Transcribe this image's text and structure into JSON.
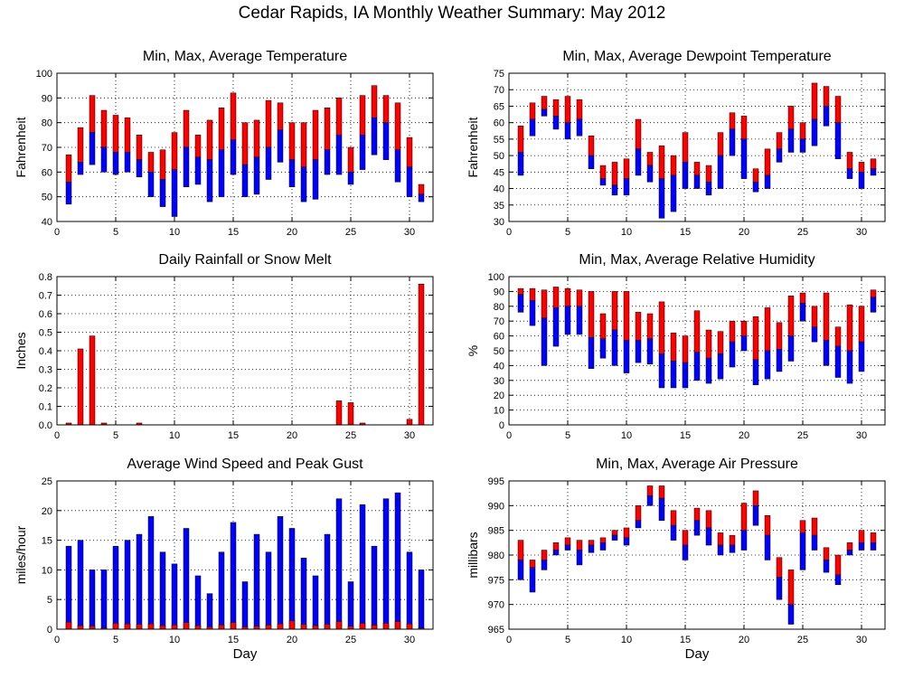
{
  "title": "Cedar Rapids, IA Monthly Weather Summary: May 2012",
  "colors": {
    "red": "#ff0000",
    "blue": "#0000ff",
    "grid": "#000000"
  },
  "chart_data": [
    {
      "id": "temp",
      "type": "bar",
      "title": "Min, Max, Average Temperature",
      "ylabel": "Fahrenheit",
      "xlabel": "",
      "xlim": [
        0,
        32
      ],
      "xticks": [
        0,
        5,
        10,
        15,
        20,
        25,
        30
      ],
      "ylim": [
        40,
        100
      ],
      "yticks": [
        40,
        50,
        60,
        70,
        80,
        90,
        100
      ],
      "grid": true,
      "x": [
        1,
        2,
        3,
        4,
        5,
        6,
        7,
        8,
        9,
        10,
        11,
        12,
        13,
        14,
        15,
        16,
        17,
        18,
        19,
        20,
        21,
        22,
        23,
        24,
        25,
        26,
        27,
        28,
        29,
        30,
        31
      ],
      "min": [
        47,
        59,
        63,
        60,
        59,
        60,
        58,
        50,
        46,
        42,
        54,
        55,
        48,
        50,
        59,
        50,
        51,
        57,
        64,
        54,
        48,
        49,
        59,
        59,
        55,
        61,
        67,
        65,
        56,
        50,
        48
      ],
      "avg": [
        56,
        64,
        76,
        70,
        68,
        68,
        65,
        60,
        57,
        61,
        70,
        66,
        65,
        69,
        73,
        63,
        66,
        70,
        77,
        65,
        62,
        65,
        69,
        75,
        60,
        75,
        82,
        80,
        69,
        62,
        51
      ],
      "max": [
        67,
        78,
        91,
        85,
        83,
        82,
        75,
        68,
        69,
        76,
        85,
        75,
        81,
        86,
        92,
        80,
        81,
        89,
        88,
        80,
        80,
        85,
        86,
        90,
        70,
        91,
        95,
        91,
        88,
        74,
        55
      ]
    },
    {
      "id": "dewpoint",
      "type": "bar",
      "title": "Min, Max, Average Dewpoint Temperature",
      "ylabel": "Fahrenheit",
      "xlabel": "",
      "xlim": [
        0,
        32
      ],
      "xticks": [
        0,
        5,
        10,
        15,
        20,
        25,
        30
      ],
      "ylim": [
        30,
        75
      ],
      "yticks": [
        30,
        35,
        40,
        45,
        50,
        55,
        60,
        65,
        70,
        75
      ],
      "grid": true,
      "x": [
        1,
        2,
        3,
        4,
        5,
        6,
        7,
        8,
        9,
        10,
        11,
        12,
        13,
        14,
        15,
        16,
        17,
        18,
        19,
        20,
        21,
        22,
        23,
        24,
        25,
        26,
        27,
        28,
        29,
        30,
        31
      ],
      "min": [
        44,
        56,
        62,
        58,
        55,
        56,
        46,
        41,
        38,
        38,
        44,
        42,
        31,
        33,
        40,
        40,
        38,
        40,
        50,
        43,
        39,
        40,
        48,
        51,
        51,
        53,
        59,
        49,
        43,
        40,
        44
      ],
      "avg": [
        51,
        61,
        64,
        62,
        60,
        61,
        50,
        43,
        41,
        43,
        52,
        47,
        43,
        44,
        48,
        44,
        42,
        50,
        58,
        55,
        42,
        44,
        52,
        58,
        55,
        61,
        65,
        60,
        46,
        45,
        46
      ],
      "max": [
        59,
        66,
        68,
        67,
        68,
        67,
        56,
        47,
        48,
        49,
        61,
        51,
        53,
        50,
        57,
        48,
        47,
        57,
        63,
        62,
        46,
        52,
        57,
        65,
        60,
        72,
        71,
        68,
        51,
        48,
        49
      ]
    },
    {
      "id": "rain",
      "type": "bar",
      "title": "Daily Rainfall or Snow Melt",
      "ylabel": "Inches",
      "xlabel": "",
      "xlim": [
        0,
        32
      ],
      "xticks": [
        0,
        5,
        10,
        15,
        20,
        25,
        30
      ],
      "ylim": [
        0,
        0.8
      ],
      "yticks": [
        "0.0",
        "0.1",
        "0.2",
        "0.3",
        "0.4",
        "0.5",
        "0.6",
        "0.7",
        "0.8"
      ],
      "grid": true,
      "x": [
        1,
        2,
        3,
        4,
        5,
        6,
        7,
        8,
        9,
        10,
        11,
        12,
        13,
        14,
        15,
        16,
        17,
        18,
        19,
        20,
        21,
        22,
        23,
        24,
        25,
        26,
        27,
        28,
        29,
        30,
        31
      ],
      "values": [
        0.01,
        0.41,
        0.48,
        0.01,
        0,
        0,
        0.01,
        0,
        0,
        0,
        0,
        0,
        0,
        0,
        0,
        0,
        0,
        0,
        0,
        0,
        0,
        0,
        0,
        0.13,
        0.12,
        0.01,
        0,
        0,
        0,
        0.03,
        0.76
      ]
    },
    {
      "id": "humidity",
      "type": "bar",
      "title": "Min, Max, Average Relative Humidity",
      "ylabel": "%",
      "xlabel": "",
      "xlim": [
        0,
        32
      ],
      "xticks": [
        0,
        5,
        10,
        15,
        20,
        25,
        30
      ],
      "ylim": [
        0,
        100
      ],
      "yticks": [
        0,
        10,
        20,
        30,
        40,
        50,
        60,
        70,
        80,
        90,
        100
      ],
      "grid": true,
      "x": [
        1,
        2,
        3,
        4,
        5,
        6,
        7,
        8,
        9,
        10,
        11,
        12,
        13,
        14,
        15,
        16,
        17,
        18,
        19,
        20,
        21,
        22,
        23,
        24,
        25,
        26,
        27,
        28,
        29,
        30,
        31
      ],
      "min": [
        76,
        67,
        40,
        53,
        61,
        61,
        38,
        45,
        40,
        35,
        42,
        41,
        25,
        25,
        25,
        30,
        28,
        31,
        39,
        50,
        27,
        31,
        36,
        43,
        70,
        56,
        40,
        32,
        28,
        36,
        76
      ],
      "avg": [
        88,
        84,
        72,
        79,
        80,
        80,
        59,
        58,
        64,
        57,
        57,
        58,
        48,
        43,
        42,
        49,
        45,
        48,
        56,
        60,
        44,
        50,
        51,
        60,
        82,
        66,
        57,
        53,
        50,
        56,
        86
      ],
      "max": [
        92,
        92,
        91,
        93,
        92,
        91,
        90,
        75,
        90,
        90,
        76,
        75,
        83,
        62,
        60,
        77,
        64,
        63,
        70,
        70,
        73,
        79,
        69,
        87,
        89,
        80,
        89,
        66,
        81,
        80,
        91
      ]
    },
    {
      "id": "wind",
      "type": "bar",
      "title": "Average Wind Speed and Peak Gust",
      "ylabel": "miles/hour",
      "xlabel": "Day",
      "xlim": [
        0,
        32
      ],
      "xticks": [
        0,
        5,
        10,
        15,
        20,
        25,
        30
      ],
      "ylim": [
        0,
        25
      ],
      "yticks": [
        0,
        5,
        10,
        15,
        20,
        25
      ],
      "grid": true,
      "x": [
        1,
        2,
        3,
        4,
        5,
        6,
        7,
        8,
        9,
        10,
        11,
        12,
        13,
        14,
        15,
        16,
        17,
        18,
        19,
        20,
        21,
        22,
        23,
        24,
        25,
        26,
        27,
        28,
        29,
        30,
        31
      ],
      "gust": [
        14,
        15,
        10,
        10,
        14,
        15,
        16,
        19,
        13,
        11,
        17,
        9,
        6,
        13,
        18,
        8,
        16,
        13,
        19,
        17,
        12,
        9,
        16,
        22,
        8,
        21,
        14,
        22,
        23,
        13,
        10
      ],
      "avg": [
        1.2,
        0.6,
        0.5,
        0.2,
        1.0,
        0.9,
        0.8,
        0.9,
        0.6,
        0.7,
        1.1,
        0.6,
        0.4,
        0.7,
        1.1,
        0.4,
        0.5,
        0.7,
        0.9,
        1.4,
        0.8,
        0.6,
        0.8,
        1.3,
        0.5,
        1.0,
        0.7,
        1.0,
        1.3,
        0.9,
        0.2
      ]
    },
    {
      "id": "pressure",
      "type": "bar",
      "title": "Min, Max, Average Air Pressure",
      "ylabel": "millibars",
      "xlabel": "Day",
      "xlim": [
        0,
        32
      ],
      "xticks": [
        0,
        5,
        10,
        15,
        20,
        25,
        30
      ],
      "ylim": [
        965,
        995
      ],
      "yticks": [
        965,
        970,
        975,
        980,
        985,
        990,
        995
      ],
      "grid": true,
      "x": [
        1,
        2,
        3,
        4,
        5,
        6,
        7,
        8,
        9,
        10,
        11,
        12,
        13,
        14,
        15,
        16,
        17,
        18,
        19,
        20,
        21,
        22,
        23,
        24,
        25,
        26,
        27,
        28,
        29,
        30,
        31
      ],
      "min": [
        975,
        972.5,
        977,
        980,
        981,
        978,
        980.5,
        981,
        983,
        982,
        985.5,
        990,
        987,
        983,
        979,
        984,
        982,
        980,
        980.5,
        981,
        986,
        979,
        971,
        966,
        977,
        981,
        976.5,
        974,
        980,
        981,
        981
      ],
      "avg": [
        979,
        977.5,
        979,
        981,
        982,
        981,
        982,
        982.5,
        984,
        983.5,
        987,
        992,
        991.5,
        986,
        982,
        987,
        985.5,
        982,
        982,
        985,
        990,
        984,
        975.5,
        970,
        984.5,
        984,
        979,
        976,
        981,
        982.5,
        982.5
      ],
      "max": [
        983,
        979,
        981,
        982.5,
        983.5,
        983,
        983,
        983.5,
        985,
        985.5,
        990,
        994,
        994,
        989,
        985,
        989.5,
        989,
        984.5,
        984,
        990.5,
        993,
        988,
        979.5,
        977,
        987,
        987.5,
        981.5,
        980,
        982.5,
        985,
        984.5
      ]
    }
  ]
}
